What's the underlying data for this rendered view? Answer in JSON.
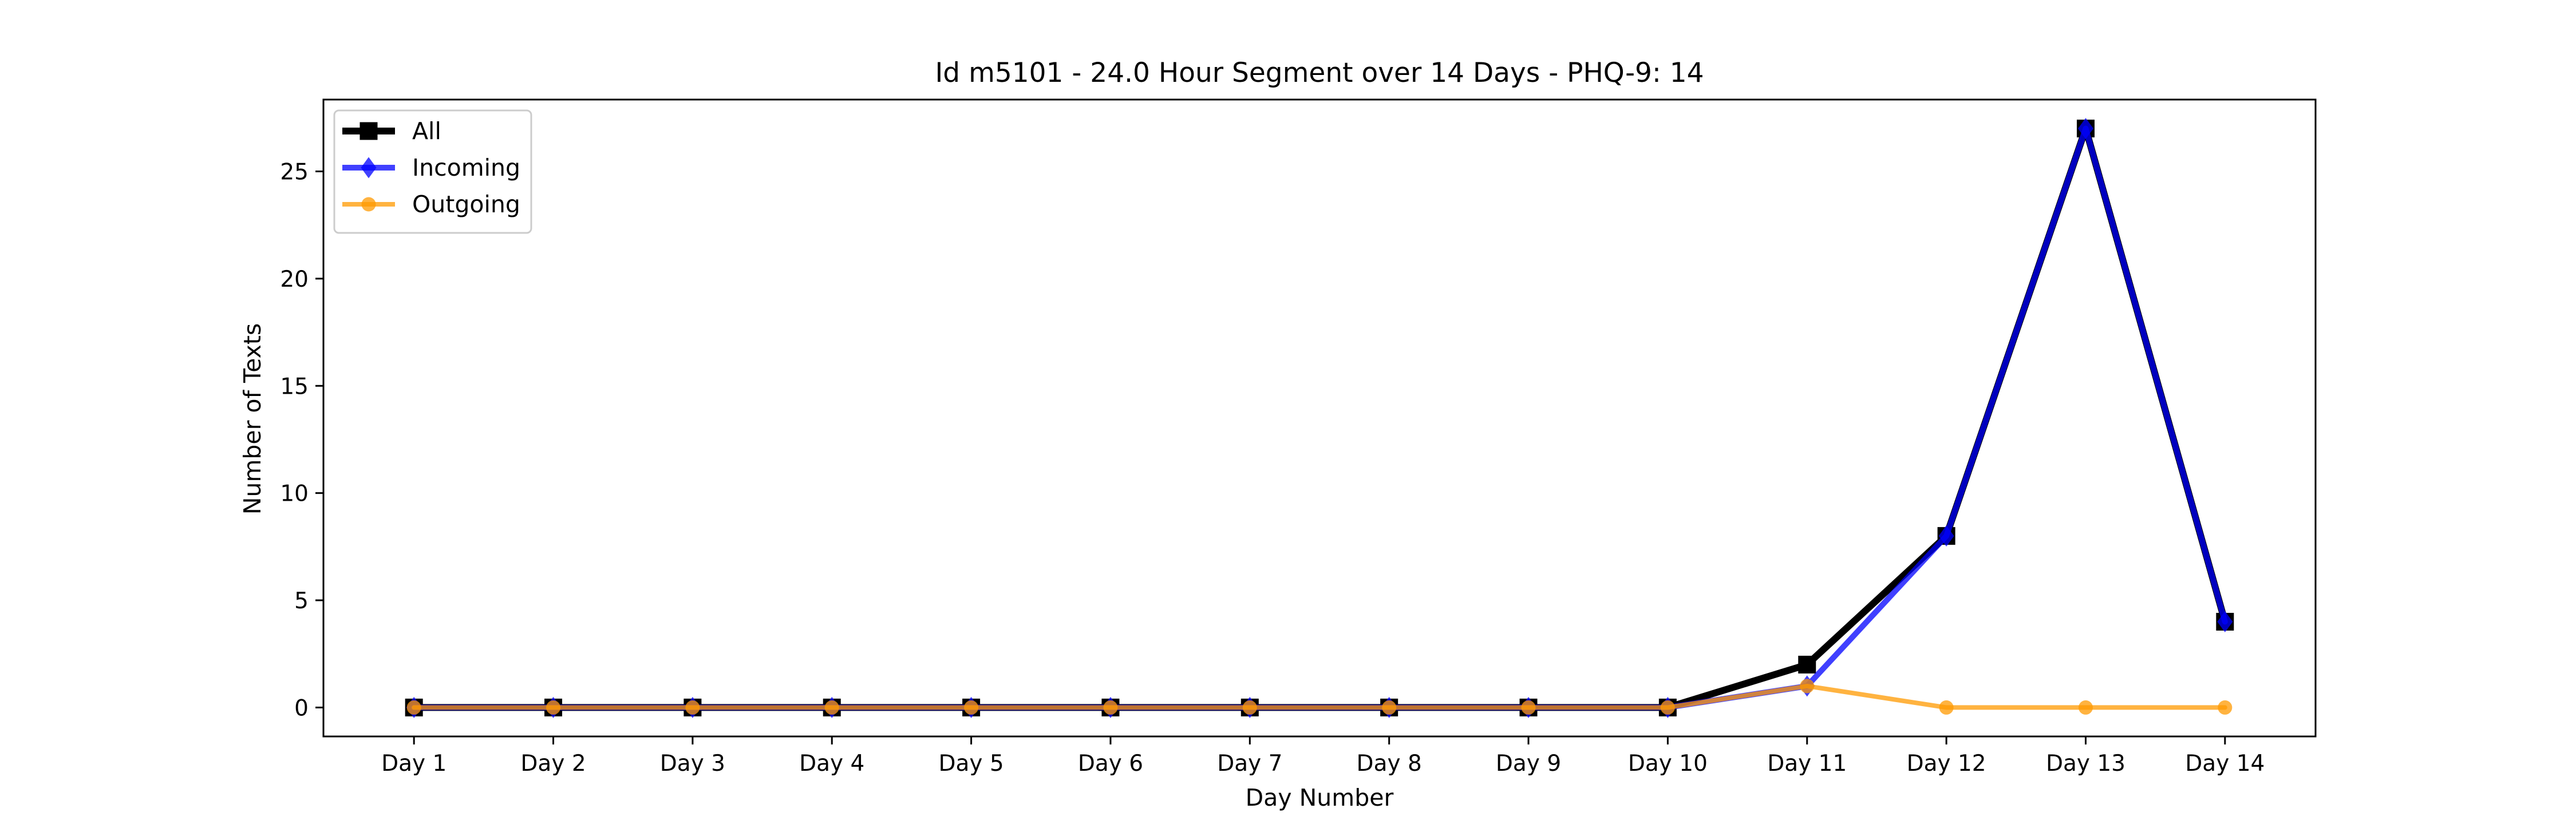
{
  "chart_data": {
    "type": "line",
    "title": "Id m5101 - 24.0 Hour Segment over 14 Days - PHQ-9: 14",
    "xlabel": "Day Number",
    "ylabel": "Number of Texts",
    "categories": [
      "Day 1",
      "Day 2",
      "Day 3",
      "Day 4",
      "Day 5",
      "Day 6",
      "Day 7",
      "Day 8",
      "Day 9",
      "Day 10",
      "Day 11",
      "Day 12",
      "Day 13",
      "Day 14"
    ],
    "ylim": [
      -1.35,
      28.35
    ],
    "yticks": [
      0,
      5,
      10,
      15,
      20,
      25
    ],
    "grid": false,
    "legend_position": "upper-left",
    "series": [
      {
        "name": "All",
        "values": [
          0,
          0,
          0,
          0,
          0,
          0,
          0,
          0,
          0,
          0,
          2,
          8,
          27,
          4
        ],
        "color": "#000000",
        "marker": "square"
      },
      {
        "name": "Incoming",
        "values": [
          0,
          0,
          0,
          0,
          0,
          0,
          0,
          0,
          0,
          0,
          1,
          8,
          27,
          4
        ],
        "color": "#0000ff",
        "marker": "diamond"
      },
      {
        "name": "Outgoing",
        "values": [
          0,
          0,
          0,
          0,
          0,
          0,
          0,
          0,
          0,
          0,
          1,
          0,
          0,
          0
        ],
        "color": "#ff9900",
        "marker": "circle"
      }
    ]
  }
}
